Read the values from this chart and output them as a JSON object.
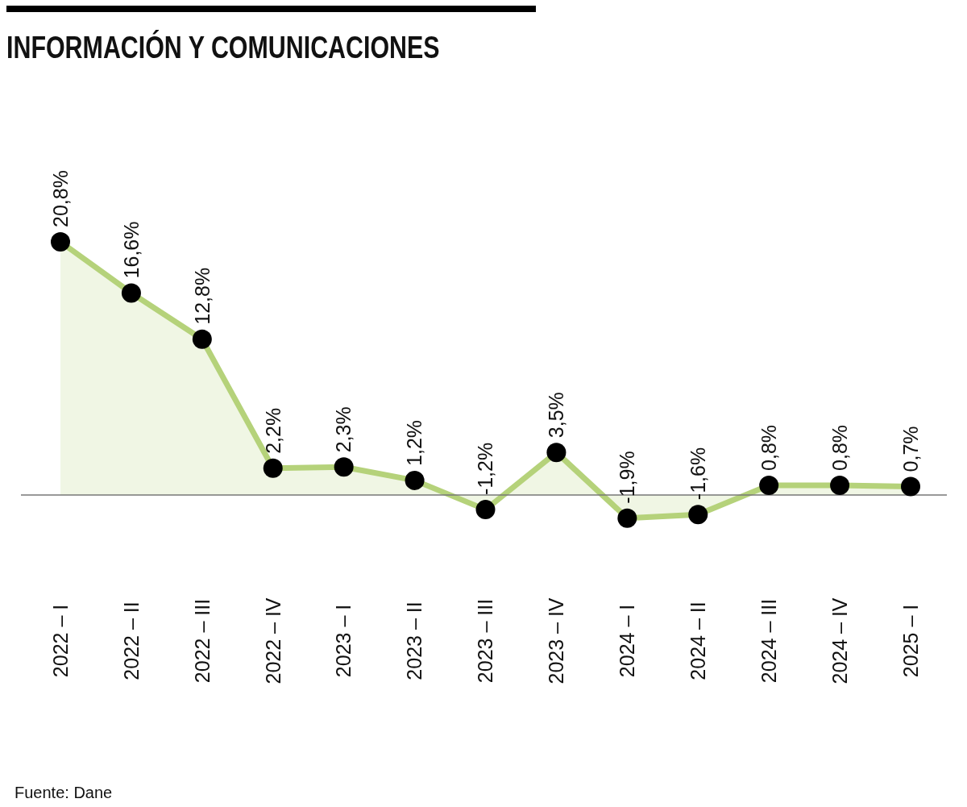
{
  "chart_data": {
    "type": "area",
    "title": "INFORMACIÓN Y COMUNICACIONES",
    "categories": [
      "2022 – I",
      "2022 – II",
      "2022 – III",
      "2022 – IV",
      "2023 – I",
      "2023 – II",
      "2023 – III",
      "2023 – IV",
      "2024 – I",
      "2024 – II",
      "2024 – III",
      "2024 – IV",
      "2025 – I"
    ],
    "values": [
      20.8,
      16.6,
      12.8,
      2.2,
      2.3,
      1.2,
      -1.2,
      3.5,
      -1.9,
      -1.6,
      0.8,
      0.8,
      0.7
    ],
    "value_labels": [
      "20,8%",
      "16,6%",
      "12,8%",
      "2,2%",
      "2,3%",
      "1,2%",
      "-1,2%",
      "3,5%",
      "-1,9%",
      "-1,6%",
      "0,8%",
      "0,8%",
      "0,7%"
    ],
    "color": "#b5d27a",
    "marker": "circle",
    "annotations": [
      "Fuente: Dane"
    ]
  }
}
